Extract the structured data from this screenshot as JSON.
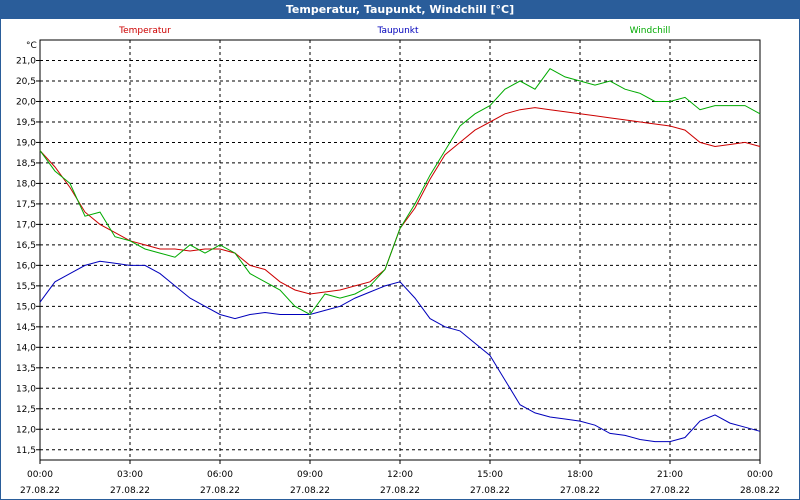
{
  "window": {
    "title": "Temperatur, Taupunkt, Windchill [°C]"
  },
  "chart_data": {
    "type": "line",
    "title": "Temperatur, Taupunkt, Windchill [°C]",
    "ylabel": "°C",
    "ylim": [
      11.25,
      21.5
    ],
    "xlim_hours": [
      0,
      24
    ],
    "grid": true,
    "legend_placement": "top",
    "y_ticks": [
      "11,5",
      "12,0",
      "12,5",
      "13,0",
      "13,5",
      "14,0",
      "14,5",
      "15,0",
      "15,5",
      "16,0",
      "16,5",
      "17,0",
      "17,5",
      "18,0",
      "18,5",
      "19,0",
      "19,5",
      "20,0",
      "20,5",
      "21,0"
    ],
    "x_tick_times": [
      "00:00",
      "03:00",
      "06:00",
      "09:00",
      "12:00",
      "15:00",
      "18:00",
      "21:00",
      "00:00"
    ],
    "x_tick_dates": [
      "27.08.22",
      "27.08.22",
      "27.08.22",
      "27.08.22",
      "27.08.22",
      "27.08.22",
      "27.08.22",
      "27.08.22",
      "28.08.22"
    ],
    "series": [
      {
        "name": "Temperatur",
        "color": "#cc0000",
        "x": [
          0,
          0.5,
          1,
          1.5,
          2,
          2.5,
          3,
          3.5,
          4,
          4.5,
          5,
          5.5,
          6,
          6.5,
          7,
          7.5,
          8,
          8.5,
          9,
          9.5,
          10,
          10.5,
          11,
          11.5,
          12,
          12.5,
          13,
          13.5,
          14,
          14.5,
          15,
          15.5,
          16,
          16.5,
          17,
          17.5,
          18,
          18.5,
          19,
          19.5,
          20,
          20.5,
          21,
          21.5,
          22,
          22.5,
          23,
          23.5,
          24
        ],
        "values": [
          18.8,
          18.4,
          17.9,
          17.3,
          17.0,
          16.8,
          16.6,
          16.5,
          16.4,
          16.4,
          16.35,
          16.4,
          16.4,
          16.3,
          16.0,
          15.9,
          15.6,
          15.4,
          15.3,
          15.35,
          15.4,
          15.5,
          15.6,
          15.9,
          16.9,
          17.4,
          18.1,
          18.7,
          19.0,
          19.3,
          19.5,
          19.7,
          19.8,
          19.85,
          19.8,
          19.75,
          19.7,
          19.65,
          19.6,
          19.55,
          19.5,
          19.45,
          19.4,
          19.3,
          19.0,
          18.9,
          18.95,
          19.0,
          18.9
        ]
      },
      {
        "name": "Taupunkt",
        "color": "#0000bb",
        "x": [
          0,
          0.5,
          1,
          1.5,
          2,
          2.5,
          3,
          3.5,
          4,
          4.5,
          5,
          5.5,
          6,
          6.5,
          7,
          7.5,
          8,
          8.5,
          9,
          9.5,
          10,
          10.5,
          11,
          11.5,
          12,
          12.5,
          13,
          13.5,
          14,
          14.5,
          15,
          15.5,
          16,
          16.5,
          17,
          17.5,
          18,
          18.5,
          19,
          19.5,
          20,
          20.5,
          21,
          21.5,
          22,
          22.5,
          23,
          23.5,
          24
        ],
        "values": [
          15.1,
          15.6,
          15.8,
          16.0,
          16.1,
          16.05,
          16.0,
          16.0,
          15.8,
          15.5,
          15.2,
          15.0,
          14.8,
          14.7,
          14.8,
          14.85,
          14.8,
          14.8,
          14.8,
          14.9,
          15.0,
          15.2,
          15.35,
          15.5,
          15.6,
          15.2,
          14.7,
          14.5,
          14.4,
          14.1,
          13.8,
          13.2,
          12.6,
          12.4,
          12.3,
          12.25,
          12.2,
          12.1,
          11.9,
          11.85,
          11.75,
          11.7,
          11.7,
          11.8,
          12.2,
          12.35,
          12.15,
          12.05,
          11.95
        ]
      },
      {
        "name": "Windchill",
        "color": "#00aa00",
        "x": [
          0,
          0.5,
          1,
          1.5,
          2,
          2.5,
          3,
          3.5,
          4,
          4.5,
          5,
          5.5,
          6,
          6.5,
          7,
          7.5,
          8,
          8.5,
          9,
          9.5,
          10,
          10.5,
          11,
          11.5,
          12,
          12.5,
          13,
          13.5,
          14,
          14.5,
          15,
          15.5,
          16,
          16.5,
          17,
          17.5,
          18,
          18.5,
          19,
          19.5,
          20,
          20.5,
          21,
          21.5,
          22,
          22.5,
          23,
          23.5,
          24
        ],
        "values": [
          18.8,
          18.3,
          18.0,
          17.2,
          17.3,
          16.7,
          16.6,
          16.4,
          16.3,
          16.2,
          16.5,
          16.3,
          16.5,
          16.3,
          15.8,
          15.6,
          15.4,
          15.0,
          14.8,
          15.3,
          15.2,
          15.3,
          15.5,
          15.9,
          16.9,
          17.5,
          18.2,
          18.8,
          19.4,
          19.7,
          19.9,
          20.3,
          20.5,
          20.3,
          20.8,
          20.6,
          20.5,
          20.4,
          20.5,
          20.3,
          20.2,
          20.0,
          20.0,
          20.1,
          19.8,
          19.9,
          19.9,
          19.9,
          19.7
        ]
      }
    ]
  }
}
